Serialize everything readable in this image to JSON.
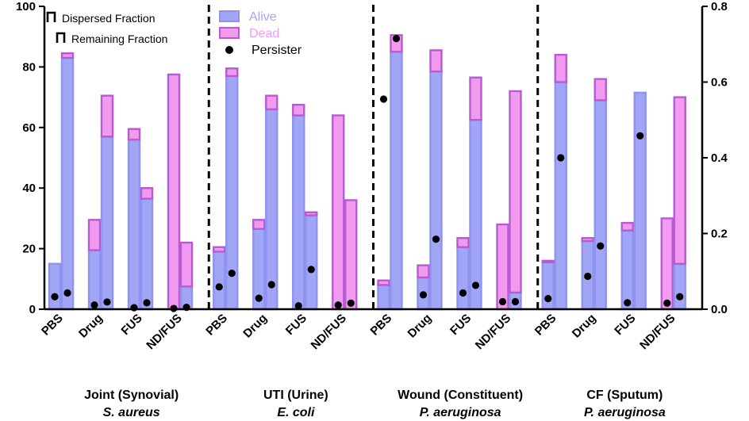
{
  "chart_data": {
    "type": "bar",
    "stacked": true,
    "y_left": {
      "min": 0,
      "max": 100,
      "ticks": [
        0,
        20,
        40,
        60,
        80,
        100
      ],
      "tick_labels": [
        "0",
        "20",
        "40",
        "60",
        "80",
        "100"
      ]
    },
    "y_right": {
      "min": 0,
      "max": 0.8,
      "ticks": [
        0,
        0.2,
        0.4,
        0.6,
        0.8
      ],
      "tick_labels": [
        "0.0",
        "0.2",
        "0.4",
        "0.6",
        "0.8"
      ]
    },
    "legend": {
      "bracket_items": [
        "Dispersed Fraction",
        "Remaining Fraction"
      ],
      "series_items": [
        {
          "label": "Alive",
          "color": "#a1a5f5"
        },
        {
          "label": "Dead",
          "color": "#f29af0"
        },
        {
          "label": "Persister",
          "color": "#000000"
        }
      ]
    },
    "colors": {
      "alive_fill": "#a1a5f5",
      "alive_edge": "#8e93ee",
      "dead_fill": "#f29af0",
      "dead_edge": "#b65cd0",
      "persister": "#000000",
      "divider": "#000000"
    },
    "categories": [
      "PBS",
      "Drug",
      "FUS",
      "ND/FUS"
    ],
    "panels": [
      {
        "title": "Joint (Synovial)",
        "subtitle": "S. aureus",
        "groups": [
          {
            "category": "PBS",
            "bars": [
              {
                "fraction": "Dispersed",
                "alive": 15,
                "dead": 0,
                "persister": 0.033
              },
              {
                "fraction": "Remaining",
                "alive": 83,
                "dead": 1.5,
                "persister": 0.043
              }
            ]
          },
          {
            "category": "Drug",
            "bars": [
              {
                "fraction": "Dispersed",
                "alive": 19.5,
                "dead": 10,
                "persister": 0.011
              },
              {
                "fraction": "Remaining",
                "alive": 57,
                "dead": 13.5,
                "persister": 0.019
              }
            ]
          },
          {
            "category": "FUS",
            "bars": [
              {
                "fraction": "Dispersed",
                "alive": 56,
                "dead": 3.5,
                "persister": 0.004
              },
              {
                "fraction": "Remaining",
                "alive": 36.5,
                "dead": 3.5,
                "persister": 0.017
              }
            ]
          },
          {
            "category": "ND/FUS",
            "bars": [
              {
                "fraction": "Dispersed",
                "alive": 0,
                "dead": 77.5,
                "persister": 0.002
              },
              {
                "fraction": "Remaining",
                "alive": 7.5,
                "dead": 14.5,
                "persister": 0.005
              }
            ]
          }
        ]
      },
      {
        "title": "UTI (Urine)",
        "subtitle": "E. coli",
        "groups": [
          {
            "category": "PBS",
            "bars": [
              {
                "fraction": "Dispersed",
                "alive": 19,
                "dead": 1.5,
                "persister": 0.059
              },
              {
                "fraction": "Remaining",
                "alive": 77,
                "dead": 2.5,
                "persister": 0.095
              }
            ]
          },
          {
            "category": "Drug",
            "bars": [
              {
                "fraction": "Dispersed",
                "alive": 26.5,
                "dead": 3,
                "persister": 0.029
              },
              {
                "fraction": "Remaining",
                "alive": 66,
                "dead": 4.5,
                "persister": 0.065
              }
            ]
          },
          {
            "category": "FUS",
            "bars": [
              {
                "fraction": "Dispersed",
                "alive": 64,
                "dead": 3.5,
                "persister": 0.009
              },
              {
                "fraction": "Remaining",
                "alive": 31,
                "dead": 1,
                "persister": 0.105
              }
            ]
          },
          {
            "category": "ND/FUS",
            "bars": [
              {
                "fraction": "Dispersed",
                "alive": 0,
                "dead": 64,
                "persister": 0.011
              },
              {
                "fraction": "Remaining",
                "alive": 0,
                "dead": 36,
                "persister": 0.016
              }
            ]
          }
        ]
      },
      {
        "title": "Wound (Constituent)",
        "subtitle": "P. aeruginosa",
        "groups": [
          {
            "category": "PBS",
            "bars": [
              {
                "fraction": "Dispersed",
                "alive": 8,
                "dead": 1.5,
                "persister": 0.555
              },
              {
                "fraction": "Remaining",
                "alive": 85,
                "dead": 5.5,
                "persister": 0.715
              }
            ]
          },
          {
            "category": "Drug",
            "bars": [
              {
                "fraction": "Dispersed",
                "alive": 10.5,
                "dead": 4,
                "persister": 0.038
              },
              {
                "fraction": "Remaining",
                "alive": 78.5,
                "dead": 7,
                "persister": 0.185
              }
            ]
          },
          {
            "category": "FUS",
            "bars": [
              {
                "fraction": "Dispersed",
                "alive": 20.5,
                "dead": 3,
                "persister": 0.043
              },
              {
                "fraction": "Remaining",
                "alive": 62.5,
                "dead": 14,
                "persister": 0.063
              }
            ]
          },
          {
            "category": "ND/FUS",
            "bars": [
              {
                "fraction": "Dispersed",
                "alive": 0,
                "dead": 28,
                "persister": 0.02
              },
              {
                "fraction": "Remaining",
                "alive": 5.5,
                "dead": 66.5,
                "persister": 0.02
              }
            ]
          }
        ]
      },
      {
        "title": "CF (Sputum)",
        "subtitle": "P. aeruginosa",
        "groups": [
          {
            "category": "PBS",
            "bars": [
              {
                "fraction": "Dispersed",
                "alive": 15.5,
                "dead": 0.5,
                "persister": 0.028
              },
              {
                "fraction": "Remaining",
                "alive": 75,
                "dead": 9,
                "persister": 0.4
              }
            ]
          },
          {
            "category": "Drug",
            "bars": [
              {
                "fraction": "Dispersed",
                "alive": 22.5,
                "dead": 1,
                "persister": 0.087
              },
              {
                "fraction": "Remaining",
                "alive": 69,
                "dead": 7,
                "persister": 0.167
              }
            ]
          },
          {
            "category": "FUS",
            "bars": [
              {
                "fraction": "Dispersed",
                "alive": 26,
                "dead": 2.5,
                "persister": 0.017
              },
              {
                "fraction": "Remaining",
                "alive": 71.5,
                "dead": 0,
                "persister": 0.458
              }
            ]
          },
          {
            "category": "ND/FUS",
            "bars": [
              {
                "fraction": "Dispersed",
                "alive": 0,
                "dead": 30,
                "persister": 0.016
              },
              {
                "fraction": "Remaining",
                "alive": 15,
                "dead": 55,
                "persister": 0.033
              }
            ]
          }
        ]
      }
    ]
  }
}
